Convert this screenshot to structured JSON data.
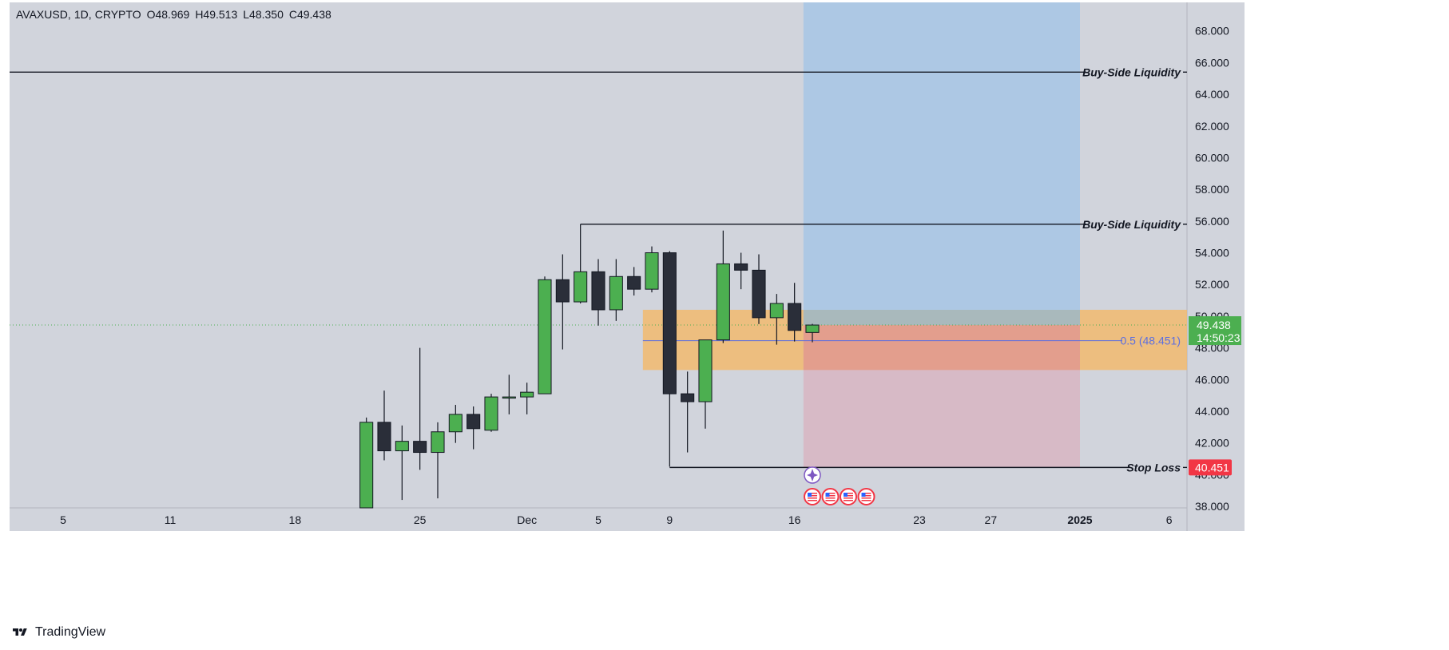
{
  "header": {
    "symbol": "AVAXUSD",
    "interval": "1D",
    "exchange": "CRYPTO",
    "open": "O48.969",
    "high": "H49.513",
    "low": "L48.350",
    "close": "C49.438"
  },
  "brand": {
    "name": "TradingView"
  },
  "price_tag": {
    "value": "49.438",
    "countdown": "14:50:23",
    "color": "#4caf50"
  },
  "stop_tag": {
    "value": "40.451",
    "color": "#f23645"
  },
  "annotations": {
    "liquidity_high": "Buy-Side Liquidity",
    "liquidity_low": "Buy-Side Liquidity",
    "stop_loss": "Stop Loss",
    "fib_label": "0.5 (48.451)"
  },
  "colors": {
    "up": "#4caf50",
    "down": "#2a2e39",
    "background": "#d1d4dc",
    "target_zone": "#a9c7e4",
    "stop_zone": "#d8b5c2",
    "orange_zone": "#f2ba6f",
    "fib_line": "#5b6ee1"
  },
  "chart_data": {
    "type": "candlestick",
    "y_axis": {
      "ticks": [
        "38.000",
        "40.000",
        "42.000",
        "44.000",
        "46.000",
        "48.000",
        "50.000",
        "52.000",
        "54.000",
        "56.000",
        "58.000",
        "60.000",
        "62.000",
        "64.000",
        "66.000",
        "68.000"
      ],
      "range": [
        37.9,
        69.8
      ]
    },
    "x_axis": {
      "ticks": [
        {
          "label": "5",
          "date": "2024-11-05"
        },
        {
          "label": "11",
          "date": "2024-11-11"
        },
        {
          "label": "18",
          "date": "2024-11-18"
        },
        {
          "label": "25",
          "date": "2024-11-25"
        },
        {
          "label": "Dec",
          "date": "2024-12-01"
        },
        {
          "label": "5",
          "date": "2024-12-05"
        },
        {
          "label": "9",
          "date": "2024-12-09"
        },
        {
          "label": "16",
          "date": "2024-12-16"
        },
        {
          "label": "23",
          "date": "2024-12-23"
        },
        {
          "label": "27",
          "date": "2024-12-27"
        },
        {
          "label": "2025",
          "date": "2025-01-01"
        },
        {
          "label": "6",
          "date": "2025-01-06"
        }
      ],
      "range": [
        "2024-11-02",
        "2025-01-07"
      ]
    },
    "candles": [
      {
        "date": "2024-11-22",
        "o": 37.2,
        "h": 43.6,
        "l": 37.0,
        "c": 43.3
      },
      {
        "date": "2024-11-23",
        "o": 43.3,
        "h": 45.3,
        "l": 40.9,
        "c": 41.5
      },
      {
        "date": "2024-11-24",
        "o": 41.5,
        "h": 43.1,
        "l": 38.4,
        "c": 42.1
      },
      {
        "date": "2024-11-25",
        "o": 42.1,
        "h": 48.0,
        "l": 40.3,
        "c": 41.4
      },
      {
        "date": "2024-11-26",
        "o": 41.4,
        "h": 43.3,
        "l": 38.5,
        "c": 42.7
      },
      {
        "date": "2024-11-27",
        "o": 42.7,
        "h": 44.4,
        "l": 42.0,
        "c": 43.8
      },
      {
        "date": "2024-11-28",
        "o": 43.8,
        "h": 44.3,
        "l": 41.6,
        "c": 42.9
      },
      {
        "date": "2024-11-29",
        "o": 42.8,
        "h": 45.1,
        "l": 42.7,
        "c": 44.9
      },
      {
        "date": "2024-11-30",
        "o": 44.9,
        "h": 46.3,
        "l": 43.8,
        "c": 44.9
      },
      {
        "date": "2024-12-01",
        "o": 44.9,
        "h": 45.8,
        "l": 43.8,
        "c": 45.2
      },
      {
        "date": "2024-12-02",
        "o": 45.1,
        "h": 52.5,
        "l": 45.1,
        "c": 52.3
      },
      {
        "date": "2024-12-03",
        "o": 52.3,
        "h": 53.9,
        "l": 47.9,
        "c": 50.9
      },
      {
        "date": "2024-12-04",
        "o": 50.9,
        "h": 55.8,
        "l": 50.8,
        "c": 52.8
      },
      {
        "date": "2024-12-05",
        "o": 52.8,
        "h": 53.6,
        "l": 49.4,
        "c": 50.4
      },
      {
        "date": "2024-12-06",
        "o": 50.4,
        "h": 53.6,
        "l": 49.7,
        "c": 52.5
      },
      {
        "date": "2024-12-07",
        "o": 52.5,
        "h": 53.1,
        "l": 51.3,
        "c": 51.7
      },
      {
        "date": "2024-12-08",
        "o": 51.7,
        "h": 54.4,
        "l": 51.5,
        "c": 54.0
      },
      {
        "date": "2024-12-09",
        "o": 54.0,
        "h": 54.1,
        "l": 40.5,
        "c": 45.1
      },
      {
        "date": "2024-12-10",
        "o": 45.1,
        "h": 46.5,
        "l": 41.4,
        "c": 44.6
      },
      {
        "date": "2024-12-11",
        "o": 44.6,
        "h": 48.5,
        "l": 42.9,
        "c": 48.5
      },
      {
        "date": "2024-12-12",
        "o": 48.5,
        "h": 55.4,
        "l": 48.3,
        "c": 53.3
      },
      {
        "date": "2024-12-13",
        "o": 53.3,
        "h": 54.0,
        "l": 51.7,
        "c": 52.9
      },
      {
        "date": "2024-12-14",
        "o": 52.9,
        "h": 53.9,
        "l": 49.5,
        "c": 49.9
      },
      {
        "date": "2024-12-15",
        "o": 49.9,
        "h": 51.4,
        "l": 48.2,
        "c": 50.8
      },
      {
        "date": "2024-12-16",
        "o": 50.8,
        "h": 52.1,
        "l": 48.4,
        "c": 49.1
      },
      {
        "date": "2024-12-17",
        "o": 48.969,
        "h": 49.513,
        "l": 48.35,
        "c": 49.438
      }
    ],
    "horizontal_lines": [
      {
        "name": "Buy-Side Liquidity",
        "value": 65.4,
        "from": "2024-11-01"
      },
      {
        "name": "Buy-Side Liquidity",
        "value": 55.8,
        "from": "2024-12-04"
      },
      {
        "name": "Stop Loss",
        "value": 40.451,
        "from": "2024-12-09"
      }
    ],
    "zones": [
      {
        "kind": "orange",
        "from": "2024-12-08",
        "to": "2025-01-07",
        "y0": 46.6,
        "y1": 50.4
      },
      {
        "kind": "target",
        "from": "2024-12-17",
        "to": "2025-01-01",
        "y0": 49.438,
        "y1": 69.8
      },
      {
        "kind": "stop",
        "from": "2024-12-17",
        "to": "2025-01-01",
        "y0": 40.451,
        "y1": 49.438
      }
    ],
    "fib_level": {
      "value": 48.451,
      "from": "2024-12-08"
    },
    "last_price": 49.438
  }
}
